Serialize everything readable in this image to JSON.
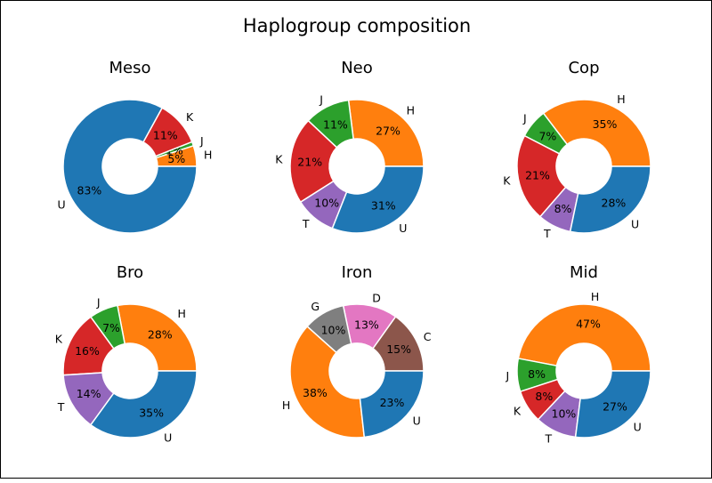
{
  "figure_title": "Haplogroup composition",
  "colors": {
    "U": "#1f77b4",
    "H": "#ff7f0e",
    "J": "#2ca02c",
    "K": "#d62728",
    "T": "#9467bd",
    "C": "#8c564b",
    "D": "#e377c2",
    "G": "#7f7f7f"
  },
  "chart_data": [
    {
      "type": "pie",
      "title": "Meso",
      "slices": [
        {
          "label": "H",
          "value": 5,
          "pct_label": "5%"
        },
        {
          "label": "J",
          "value": 1,
          "pct_label": "1%"
        },
        {
          "label": "K",
          "value": 11,
          "pct_label": "11%"
        },
        {
          "label": "U",
          "value": 83,
          "pct_label": "83%"
        }
      ]
    },
    {
      "type": "pie",
      "title": "Neo",
      "slices": [
        {
          "label": "H",
          "value": 27,
          "pct_label": "27%"
        },
        {
          "label": "J",
          "value": 11,
          "pct_label": "11%"
        },
        {
          "label": "K",
          "value": 21,
          "pct_label": "21%"
        },
        {
          "label": "T",
          "value": 10,
          "pct_label": "10%"
        },
        {
          "label": "U",
          "value": 31,
          "pct_label": "31%"
        }
      ]
    },
    {
      "type": "pie",
      "title": "Cop",
      "slices": [
        {
          "label": "H",
          "value": 35,
          "pct_label": "35%"
        },
        {
          "label": "J",
          "value": 7,
          "pct_label": "7%"
        },
        {
          "label": "K",
          "value": 21,
          "pct_label": "21%"
        },
        {
          "label": "T",
          "value": 8,
          "pct_label": "8%"
        },
        {
          "label": "U",
          "value": 28,
          "pct_label": "28%"
        }
      ]
    },
    {
      "type": "pie",
      "title": "Bro",
      "slices": [
        {
          "label": "H",
          "value": 28,
          "pct_label": "28%"
        },
        {
          "label": "J",
          "value": 7,
          "pct_label": "7%"
        },
        {
          "label": "K",
          "value": 16,
          "pct_label": "16%"
        },
        {
          "label": "T",
          "value": 14,
          "pct_label": "14%"
        },
        {
          "label": "U",
          "value": 35,
          "pct_label": "35%"
        }
      ]
    },
    {
      "type": "pie",
      "title": "Iron",
      "slices": [
        {
          "label": "C",
          "value": 15,
          "pct_label": "15%"
        },
        {
          "label": "D",
          "value": 13,
          "pct_label": "13%"
        },
        {
          "label": "G",
          "value": 10,
          "pct_label": "10%"
        },
        {
          "label": "H",
          "value": 38,
          "pct_label": "38%"
        },
        {
          "label": "U",
          "value": 23,
          "pct_label": "23%"
        }
      ]
    },
    {
      "type": "pie",
      "title": "Mid",
      "slices": [
        {
          "label": "H",
          "value": 47,
          "pct_label": "47%"
        },
        {
          "label": "J",
          "value": 8,
          "pct_label": "8%"
        },
        {
          "label": "K",
          "value": 8,
          "pct_label": "8%"
        },
        {
          "label": "T",
          "value": 10,
          "pct_label": "10%"
        },
        {
          "label": "U",
          "value": 27,
          "pct_label": "27%"
        }
      ]
    }
  ]
}
